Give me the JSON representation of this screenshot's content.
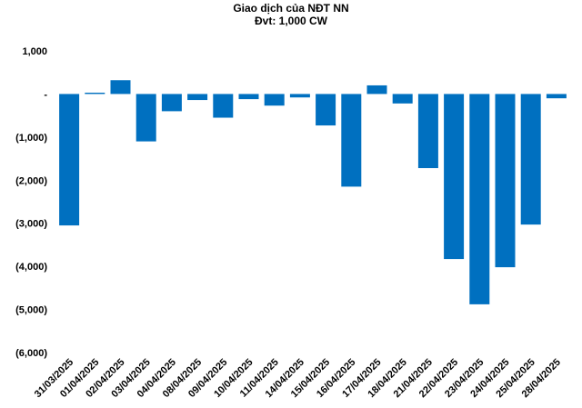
{
  "chart_data": {
    "type": "bar",
    "title": "Giao dịch của NĐT NN",
    "subtitle": "Đvt: 1,000 CW",
    "xlabel": "",
    "ylabel": "",
    "ylim": [
      -6000,
      1000
    ],
    "yticks": [
      1000,
      0,
      -1000,
      -2000,
      -3000,
      -4000,
      -5000,
      -6000
    ],
    "ytick_labels": [
      "1,000",
      "-",
      "(1,000)",
      "(2,000)",
      "(3,000)",
      "(4,000)",
      "(5,000)",
      "(6,000)"
    ],
    "grid": false,
    "legend": "none",
    "bar_color": "#0070C0",
    "categories": [
      "31/03/2025",
      "01/04/2025",
      "02/04/2025",
      "03/04/2025",
      "04/04/2025",
      "08/04/2025",
      "09/04/2025",
      "10/04/2025",
      "11/04/2025",
      "14/04/2025",
      "15/04/2025",
      "16/04/2025",
      "17/04/2025",
      "18/04/2025",
      "21/04/2025",
      "22/04/2025",
      "23/04/2025",
      "24/04/2025",
      "25/04/2025",
      "28/04/2025"
    ],
    "values": [
      -3050,
      30,
      320,
      -1100,
      -400,
      -140,
      -550,
      -120,
      -270,
      -80,
      -730,
      -2150,
      200,
      -220,
      -1720,
      -3830,
      -4880,
      -4020,
      -3030,
      -100
    ]
  }
}
